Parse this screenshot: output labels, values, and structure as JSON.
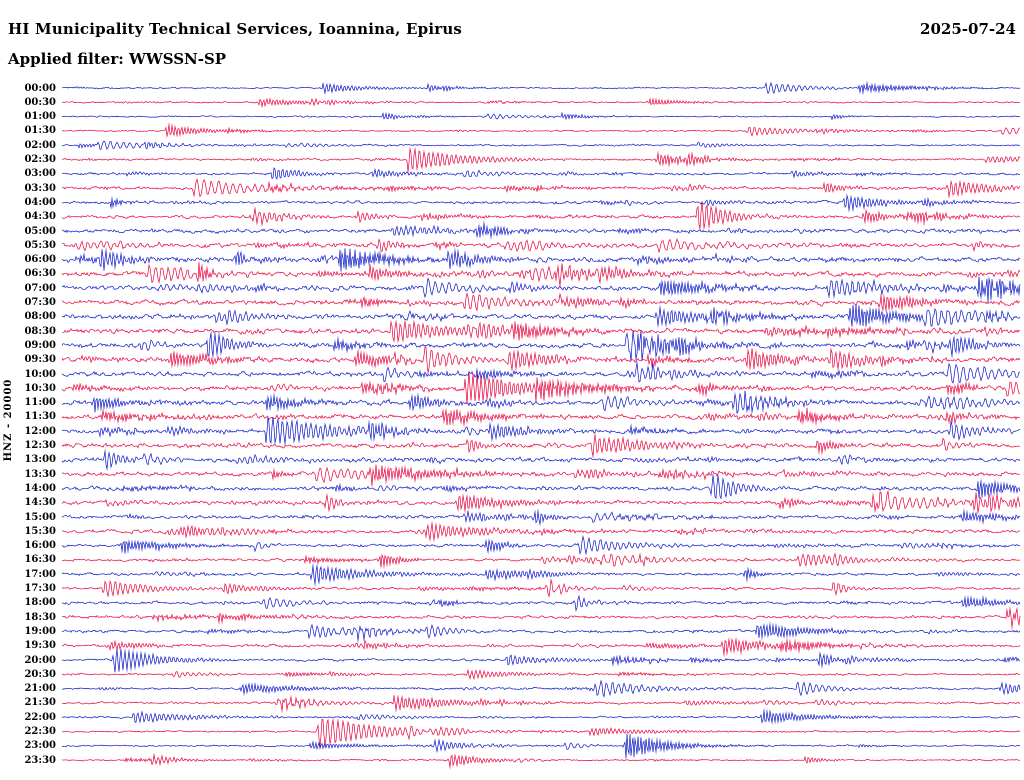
{
  "header": {
    "title": "HI Municipality Technical Services, Ioannina, Epirus",
    "date": "2025-07-24",
    "applied_filter": "Applied filter: WWSSN-SP"
  },
  "axis": {
    "channel_label": "HNZ - 20000"
  },
  "chart_data": {
    "type": "line",
    "subtype": "helicorder-seismogram",
    "title": "HI Municipality Technical Services, Ioannina, Epirus",
    "date": "2025-07-24",
    "filter": "WWSSN-SP",
    "channel": "HNZ",
    "scale_label": "HNZ - 20000",
    "row_duration_minutes": 30,
    "rows_count": 48,
    "legend_position": "none",
    "grid": false,
    "trace_colors": {
      "blue": "#0a15c8",
      "red": "#e8003c"
    },
    "waveform_description": "Continuous ambient seismic noise with scattered transient event bursts; amplitude low overnight (00:00-05:00), highest 06:00-16:00, moderate in the evening. Activity value below is the relative noise amplitude (0-1.05) read from trace thickness.",
    "rows": [
      {
        "label": "00:00",
        "color": "blue",
        "activity": 0.3
      },
      {
        "label": "00:30",
        "color": "red",
        "activity": 0.3
      },
      {
        "label": "01:00",
        "color": "blue",
        "activity": 0.28
      },
      {
        "label": "01:30",
        "color": "red",
        "activity": 0.3
      },
      {
        "label": "02:00",
        "color": "blue",
        "activity": 0.35
      },
      {
        "label": "02:30",
        "color": "red",
        "activity": 0.4
      },
      {
        "label": "03:00",
        "color": "blue",
        "activity": 0.5
      },
      {
        "label": "03:30",
        "color": "red",
        "activity": 0.6
      },
      {
        "label": "04:00",
        "color": "blue",
        "activity": 0.6
      },
      {
        "label": "04:30",
        "color": "red",
        "activity": 0.65
      },
      {
        "label": "05:00",
        "color": "blue",
        "activity": 0.8
      },
      {
        "label": "05:30",
        "color": "red",
        "activity": 0.9
      },
      {
        "label": "06:00",
        "color": "blue",
        "activity": 1.0
      },
      {
        "label": "06:30",
        "color": "red",
        "activity": 1.0
      },
      {
        "label": "07:00",
        "color": "blue",
        "activity": 1.0
      },
      {
        "label": "07:30",
        "color": "red",
        "activity": 1.0
      },
      {
        "label": "08:00",
        "color": "blue",
        "activity": 1.0
      },
      {
        "label": "08:30",
        "color": "red",
        "activity": 1.05
      },
      {
        "label": "09:00",
        "color": "blue",
        "activity": 1.05
      },
      {
        "label": "09:30",
        "color": "red",
        "activity": 1.0
      },
      {
        "label": "10:00",
        "color": "blue",
        "activity": 0.95
      },
      {
        "label": "10:30",
        "color": "red",
        "activity": 0.95
      },
      {
        "label": "11:00",
        "color": "blue",
        "activity": 1.0
      },
      {
        "label": "11:30",
        "color": "red",
        "activity": 0.95
      },
      {
        "label": "12:00",
        "color": "blue",
        "activity": 0.9
      },
      {
        "label": "12:30",
        "color": "red",
        "activity": 0.9
      },
      {
        "label": "13:00",
        "color": "blue",
        "activity": 0.9
      },
      {
        "label": "13:30",
        "color": "red",
        "activity": 0.85
      },
      {
        "label": "14:00",
        "color": "blue",
        "activity": 0.8
      },
      {
        "label": "14:30",
        "color": "red",
        "activity": 0.8
      },
      {
        "label": "15:00",
        "color": "blue",
        "activity": 0.75
      },
      {
        "label": "15:30",
        "color": "red",
        "activity": 0.75
      },
      {
        "label": "16:00",
        "color": "blue",
        "activity": 0.6
      },
      {
        "label": "16:30",
        "color": "red",
        "activity": 0.55
      },
      {
        "label": "17:00",
        "color": "blue",
        "activity": 0.55
      },
      {
        "label": "17:30",
        "color": "red",
        "activity": 0.5
      },
      {
        "label": "18:00",
        "color": "blue",
        "activity": 0.6
      },
      {
        "label": "18:30",
        "color": "red",
        "activity": 0.6
      },
      {
        "label": "19:00",
        "color": "blue",
        "activity": 0.6
      },
      {
        "label": "19:30",
        "color": "red",
        "activity": 0.55
      },
      {
        "label": "20:00",
        "color": "blue",
        "activity": 0.5
      },
      {
        "label": "20:30",
        "color": "red",
        "activity": 0.4
      },
      {
        "label": "21:00",
        "color": "blue",
        "activity": 0.45
      },
      {
        "label": "21:30",
        "color": "red",
        "activity": 0.45
      },
      {
        "label": "22:00",
        "color": "blue",
        "activity": 0.4
      },
      {
        "label": "22:30",
        "color": "red",
        "activity": 0.35
      },
      {
        "label": "23:00",
        "color": "blue",
        "activity": 0.35
      },
      {
        "label": "23:30",
        "color": "red",
        "activity": 0.3
      }
    ]
  }
}
